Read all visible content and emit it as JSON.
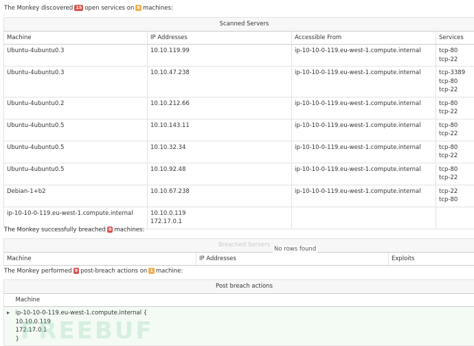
{
  "scanned": {
    "intro": {
      "before": "The Monkey discovered",
      "services": 15,
      "middle": "open services on",
      "machines": 8,
      "after": "machines:"
    },
    "caption": "Scanned Servers",
    "headers": [
      "Machine",
      "IP Addresses",
      "Accessible From",
      "Services"
    ],
    "rows": [
      {
        "machine": "Ubuntu-4ubuntu0.3",
        "ips": [
          "10.10.119.99"
        ],
        "accessible_from": [
          "ip-10-10-0-119.eu-west-1.compute.internal"
        ],
        "services": [
          "tcp-80",
          "tcp-22"
        ]
      },
      {
        "machine": "Ubuntu-4ubuntu0.3",
        "ips": [
          "10.10.47.238"
        ],
        "accessible_from": [
          "ip-10-10-0-119.eu-west-1.compute.internal"
        ],
        "services": [
          "tcp-3389",
          "tcp-80",
          "tcp-22"
        ]
      },
      {
        "machine": "Ubuntu-4ubuntu0.2",
        "ips": [
          "10.10.212.66"
        ],
        "accessible_from": [
          "ip-10-10-0-119.eu-west-1.compute.internal"
        ],
        "services": [
          "tcp-80",
          "tcp-22"
        ]
      },
      {
        "machine": "Ubuntu-4ubuntu0.5",
        "ips": [
          "10.10.143.11"
        ],
        "accessible_from": [
          "ip-10-10-0-119.eu-west-1.compute.internal"
        ],
        "services": [
          "tcp-80",
          "tcp-22"
        ]
      },
      {
        "machine": "Ubuntu-4ubuntu0.5",
        "ips": [
          "10.10.32.34"
        ],
        "accessible_from": [
          "ip-10-10-0-119.eu-west-1.compute.internal"
        ],
        "services": [
          "tcp-80",
          "tcp-22"
        ]
      },
      {
        "machine": "Ubuntu-4ubuntu0.5",
        "ips": [
          "10.10.92.48"
        ],
        "accessible_from": [
          "ip-10-10-0-119.eu-west-1.compute.internal"
        ],
        "services": [
          "tcp-80",
          "tcp-22"
        ]
      },
      {
        "machine": "Debian-1+b2",
        "ips": [
          "10.10.67.238"
        ],
        "accessible_from": [
          "ip-10-10-0-119.eu-west-1.compute.internal"
        ],
        "services": [
          "tcp-22",
          "tcp-80"
        ]
      },
      {
        "machine": "ip-10-10-0-119.eu-west-1.compute.internal",
        "ips": [
          "10.10.0.119",
          "172.17.0.1"
        ],
        "accessible_from": [],
        "services": []
      }
    ]
  },
  "breached": {
    "intro": {
      "before": "The Monkey successfully breached",
      "machines": 0,
      "after": "machines:"
    },
    "caption": "Breached Servers",
    "empty": "No rows found",
    "headers": [
      "Machine",
      "IP Addresses",
      "Exploits"
    ]
  },
  "post_breach": {
    "intro": {
      "before": "The Monkey performed",
      "actions": 9,
      "middle": "post-breach actions on",
      "machines": 1,
      "after": "machine:"
    },
    "caption": "Post breach actions",
    "headers": [
      "Machine"
    ],
    "row": [
      "ip-10-10-0-119.eu-west-1.compute.internal {",
      "10.10.0.119",
      "172.17.0.1",
      "}"
    ]
  },
  "watermark": "FREEBUF"
}
